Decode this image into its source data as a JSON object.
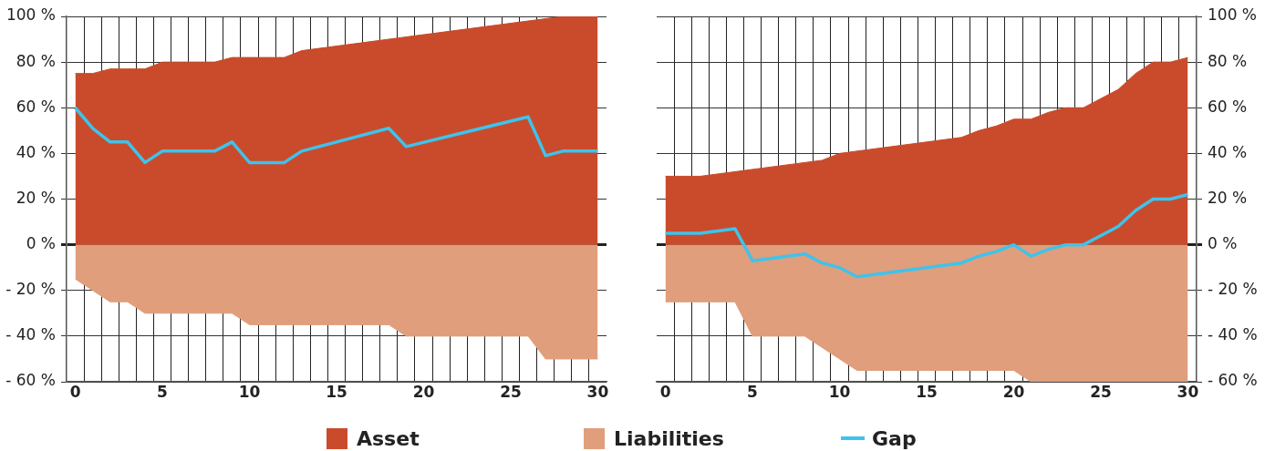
{
  "chart_data": [
    {
      "type": "area",
      "xlim": [
        -0.5,
        30.5
      ],
      "ylim": [
        -60,
        100
      ],
      "xticks": [
        0,
        5,
        10,
        15,
        20,
        25,
        30,
        {
          "value": 0.5,
          "label": null
        },
        {
          "value": 1.5,
          "label": null
        },
        {
          "value": 2.5,
          "label": null
        },
        {
          "value": 3.5,
          "label": null
        },
        {
          "value": 4.5,
          "label": null
        },
        {
          "value": 5.5,
          "label": null
        },
        {
          "value": 6.5,
          "label": null
        },
        {
          "value": 7.5,
          "label": null
        },
        {
          "value": 8.5,
          "label": null
        },
        {
          "value": 9.5,
          "label": null
        },
        {
          "value": 10.5,
          "label": null
        },
        {
          "value": 11.5,
          "label": null
        },
        {
          "value": 12.5,
          "label": null
        },
        {
          "value": 13.5,
          "label": null
        },
        {
          "value": 14.5,
          "label": null
        },
        {
          "value": 15.5,
          "label": null
        },
        {
          "value": 16.5,
          "label": null
        },
        {
          "value": 17.5,
          "label": null
        },
        {
          "value": 18.5,
          "label": null
        },
        {
          "value": 19.5,
          "label": null
        },
        {
          "value": 20.5,
          "label": null
        },
        {
          "value": 21.5,
          "label": null
        },
        {
          "value": 22.5,
          "label": null
        },
        {
          "value": 23.5,
          "label": null
        },
        {
          "value": 24.5,
          "label": null
        },
        {
          "value": 25.5,
          "label": null
        },
        {
          "value": 26.5,
          "label": null
        },
        {
          "value": 27.5,
          "label": null
        },
        {
          "value": 28.5,
          "label": null
        },
        {
          "value": 29.5,
          "label": null
        }
      ],
      "yticks": [
        {
          "value": -60,
          "label": "- 60 %"
        },
        {
          "value": -40,
          "label": "- 40 %"
        },
        {
          "value": -20,
          "label": "- 20 %"
        },
        {
          "value": 0,
          "label": "0 %"
        },
        {
          "value": 20,
          "label": "20 %"
        },
        {
          "value": 40,
          "label": "40 %"
        },
        {
          "value": 60,
          "label": "60 %"
        },
        {
          "value": 80,
          "label": "80 %"
        },
        {
          "value": 100,
          "label": "100 %"
        }
      ],
      "grid": true,
      "legend": "bottom",
      "series": [
        {
          "name": "Asset",
          "type": "area",
          "color": "#c94b2b",
          "x": [
            0,
            1,
            2,
            3,
            4,
            5,
            8,
            9,
            12,
            13,
            28,
            30
          ],
          "values": [
            75,
            75,
            77,
            77,
            77,
            80,
            80,
            82,
            82,
            85,
            100,
            100
          ]
        },
        {
          "name": "Liabilities",
          "type": "area",
          "color": "#e09e7c",
          "x": [
            0,
            2,
            3,
            4,
            9,
            10,
            18,
            19,
            26,
            27,
            30
          ],
          "values": [
            -15,
            -25,
            -25,
            -30,
            -30,
            -35,
            -35,
            -40,
            -40,
            -50,
            -50
          ]
        },
        {
          "name": "Gap",
          "type": "line",
          "color": "#3ec3ec",
          "x": [
            0,
            1,
            2,
            3,
            4,
            5,
            8,
            9,
            10,
            12,
            13,
            18,
            19,
            26,
            27,
            28,
            30
          ],
          "values": [
            60,
            51,
            45,
            45,
            36,
            41,
            41,
            45,
            36,
            36,
            41,
            51,
            43,
            56,
            39,
            41,
            41
          ]
        }
      ]
    },
    {
      "type": "area",
      "xlim": [
        -0.5,
        30.5
      ],
      "y2lim": [
        -60,
        100
      ],
      "xticks": [
        0,
        5,
        10,
        15,
        20,
        25,
        30,
        {
          "value": 0.5,
          "label": null
        },
        {
          "value": 1.5,
          "label": null
        },
        {
          "value": 2.5,
          "label": null
        },
        {
          "value": 3.5,
          "label": null
        },
        {
          "value": 4.5,
          "label": null
        },
        {
          "value": 5.5,
          "label": null
        },
        {
          "value": 6.5,
          "label": null
        },
        {
          "value": 7.5,
          "label": null
        },
        {
          "value": 8.5,
          "label": null
        },
        {
          "value": 9.5,
          "label": null
        },
        {
          "value": 10.5,
          "label": null
        },
        {
          "value": 11.5,
          "label": null
        },
        {
          "value": 12.5,
          "label": null
        },
        {
          "value": 13.5,
          "label": null
        },
        {
          "value": 14.5,
          "label": null
        },
        {
          "value": 15.5,
          "label": null
        },
        {
          "value": 16.5,
          "label": null
        },
        {
          "value": 17.5,
          "label": null
        },
        {
          "value": 18.5,
          "label": null
        },
        {
          "value": 19.5,
          "label": null
        },
        {
          "value": 20.5,
          "label": null
        },
        {
          "value": 21.5,
          "label": null
        },
        {
          "value": 22.5,
          "label": null
        },
        {
          "value": 23.5,
          "label": null
        },
        {
          "value": 24.5,
          "label": null
        },
        {
          "value": 25.5,
          "label": null
        },
        {
          "value": 26.5,
          "label": null
        },
        {
          "value": 27.5,
          "label": null
        },
        {
          "value": 28.5,
          "label": null
        },
        {
          "value": 29.5,
          "label": null
        }
      ],
      "y2ticks": [
        {
          "value": -60,
          "label": "- 60 %"
        },
        {
          "value": -40,
          "label": "- 40 %"
        },
        {
          "value": -20,
          "label": "- 20 %"
        },
        {
          "value": 0,
          "label": "0 %"
        },
        {
          "value": 20,
          "label": "20 %"
        },
        {
          "value": 40,
          "label": "40 %"
        },
        {
          "value": 60,
          "label": "60 %"
        },
        {
          "value": 80,
          "label": "80 %"
        },
        {
          "value": 100,
          "label": "100 %"
        }
      ],
      "grid": true,
      "series": [
        {
          "type": "area",
          "axis": "y2",
          "color": "#c94b2b",
          "x": [
            0,
            2,
            9,
            10,
            17,
            18,
            19,
            20,
            21,
            22,
            23,
            24,
            25,
            26,
            27,
            28,
            29,
            30
          ],
          "values": [
            30,
            30,
            37,
            40,
            47,
            50,
            52,
            55,
            55,
            58,
            60,
            60,
            64,
            68,
            75,
            80,
            80,
            82
          ]
        },
        {
          "type": "area",
          "axis": "y2",
          "color": "#e09e7c",
          "x": [
            0,
            4,
            5,
            8,
            11,
            20,
            21,
            30
          ],
          "values": [
            -25,
            -25,
            -40,
            -40,
            -55,
            -55,
            -60,
            -60
          ]
        },
        {
          "type": "line",
          "axis": "y2",
          "color": "#3ec3ec",
          "x": [
            0,
            2,
            4,
            5,
            8,
            9,
            10,
            11,
            17,
            18,
            19,
            20,
            21,
            22,
            23,
            24,
            26,
            27,
            28,
            29,
            30
          ],
          "values": [
            5,
            5,
            7,
            -7,
            -4,
            -8,
            -10,
            -14,
            -8,
            -5,
            -3,
            0,
            -5,
            -2,
            0,
            0,
            8,
            15,
            20,
            20,
            22
          ]
        }
      ]
    }
  ]
}
